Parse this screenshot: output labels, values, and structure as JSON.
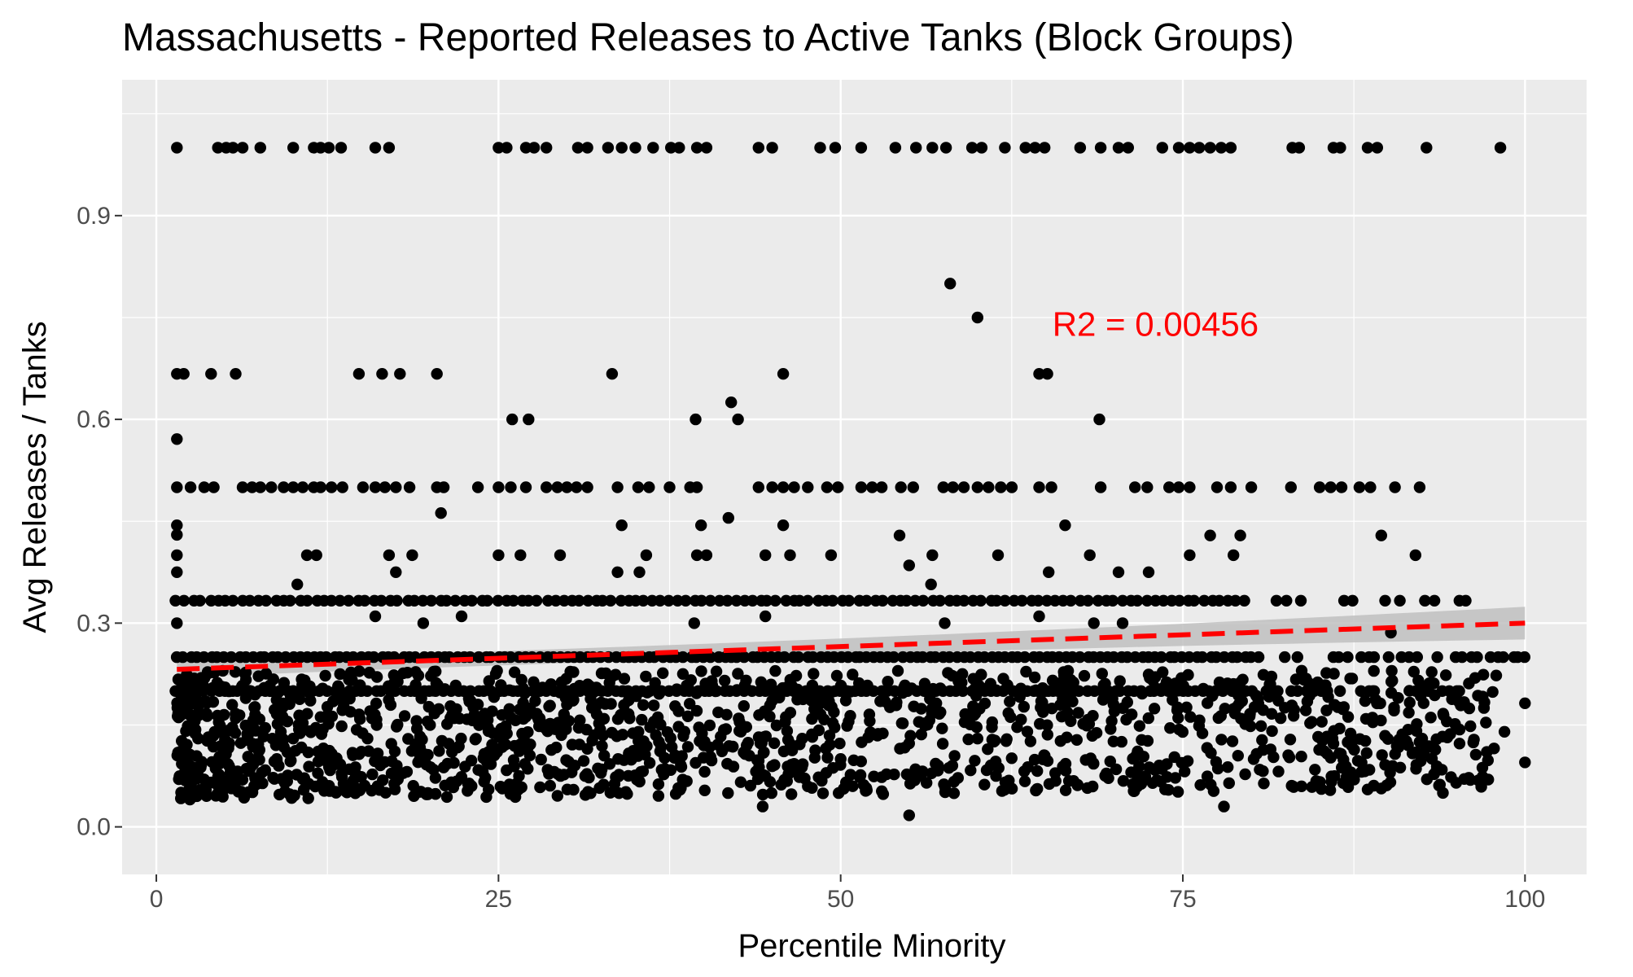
{
  "chart_data": {
    "type": "scatter",
    "title": "Massachusetts - Reported Releases to Active Tanks (Block Groups)",
    "xlabel": "Percentile Minority",
    "ylabel": "Avg Releases / Tanks",
    "xlim": [
      -2.5,
      104.5
    ],
    "ylim": [
      -0.07,
      1.1
    ],
    "x_ticks": [
      0,
      25,
      50,
      75,
      100
    ],
    "x_tick_labels": [
      "0",
      "25",
      "50",
      "75",
      "100"
    ],
    "y_ticks": [
      0.0,
      0.3,
      0.6,
      0.9
    ],
    "y_tick_labels": [
      "0.0",
      "0.3",
      "0.6",
      "0.9"
    ],
    "grid": true,
    "background_color": "#ebebeb",
    "point_color": "#000000",
    "trend_line": {
      "x": [
        1.5,
        100
      ],
      "y": [
        0.232,
        0.3
      ],
      "color": "#ff0000",
      "style": "dashed",
      "ribbon_color": "#bfbfbf",
      "ribbon_halfwidth": [
        0.012,
        0.006,
        0.024
      ]
    },
    "annotation": {
      "text": "R2 =  0.00456",
      "x": 73,
      "y": 0.74,
      "color": "#ff0000"
    },
    "points": [
      [
        1.5,
        1.0
      ],
      [
        4.5,
        1.0
      ],
      [
        5.1,
        1.0
      ],
      [
        5.6,
        1.0
      ],
      [
        6.3,
        1.0
      ],
      [
        7.6,
        1.0
      ],
      [
        10,
        1.0
      ],
      [
        11.5,
        1.0
      ],
      [
        12,
        1.0
      ],
      [
        12.6,
        1.0
      ],
      [
        13.5,
        1.0
      ],
      [
        16,
        1.0
      ],
      [
        17,
        1.0
      ],
      [
        25,
        1.0
      ],
      [
        25.6,
        1.0
      ],
      [
        27,
        1.0
      ],
      [
        27.6,
        1.0
      ],
      [
        28.5,
        1.0
      ],
      [
        30.8,
        1.0
      ],
      [
        31.5,
        1.0
      ],
      [
        33,
        1.0
      ],
      [
        34,
        1.0
      ],
      [
        35,
        1.0
      ],
      [
        36.3,
        1.0
      ],
      [
        37.6,
        1.0
      ],
      [
        38.2,
        1.0
      ],
      [
        39.5,
        1.0
      ],
      [
        40.2,
        1.0
      ],
      [
        44,
        1.0
      ],
      [
        45,
        1.0
      ],
      [
        48.5,
        1.0
      ],
      [
        49.6,
        1.0
      ],
      [
        51.5,
        1.0
      ],
      [
        54,
        1.0
      ],
      [
        55.5,
        1.0
      ],
      [
        56.7,
        1.0
      ],
      [
        57.7,
        1.0
      ],
      [
        59.6,
        1.0
      ],
      [
        60.3,
        1.0
      ],
      [
        62,
        1.0
      ],
      [
        63.5,
        1.0
      ],
      [
        64.2,
        1.0
      ],
      [
        64.9,
        1.0
      ],
      [
        67.5,
        1.0
      ],
      [
        69,
        1.0
      ],
      [
        70.3,
        1.0
      ],
      [
        71,
        1.0
      ],
      [
        73.5,
        1.0
      ],
      [
        74.7,
        1.0
      ],
      [
        75.5,
        1.0
      ],
      [
        76.2,
        1.0
      ],
      [
        77,
        1.0
      ],
      [
        77.8,
        1.0
      ],
      [
        78.5,
        1.0
      ],
      [
        83,
        1.0
      ],
      [
        83.5,
        1.0
      ],
      [
        86,
        1.0
      ],
      [
        86.5,
        1.0
      ],
      [
        88.5,
        1.0
      ],
      [
        89.2,
        1.0
      ],
      [
        92.8,
        1.0
      ],
      [
        98.2,
        1.0
      ],
      [
        58,
        0.8
      ],
      [
        60,
        0.75
      ],
      [
        1.5,
        0.667
      ],
      [
        2,
        0.667
      ],
      [
        4,
        0.667
      ],
      [
        5.8,
        0.667
      ],
      [
        14.8,
        0.667
      ],
      [
        16.5,
        0.667
      ],
      [
        17.8,
        0.667
      ],
      [
        20.5,
        0.667
      ],
      [
        33.3,
        0.667
      ],
      [
        45.8,
        0.667
      ],
      [
        64.5,
        0.667
      ],
      [
        65.1,
        0.667
      ],
      [
        42,
        0.625
      ],
      [
        26,
        0.6
      ],
      [
        27.2,
        0.6
      ],
      [
        39.4,
        0.6
      ],
      [
        42.5,
        0.6
      ],
      [
        68.9,
        0.6
      ],
      [
        1.5,
        0.571
      ],
      [
        1.5,
        0.5
      ],
      [
        2.5,
        0.5
      ],
      [
        3.5,
        0.5
      ],
      [
        4.2,
        0.5
      ],
      [
        6.3,
        0.5
      ],
      [
        7,
        0.5
      ],
      [
        7.6,
        0.5
      ],
      [
        8.4,
        0.5
      ],
      [
        9.3,
        0.5
      ],
      [
        10,
        0.5
      ],
      [
        10.7,
        0.5
      ],
      [
        11.5,
        0.5
      ],
      [
        12,
        0.5
      ],
      [
        12.8,
        0.5
      ],
      [
        13.6,
        0.5
      ],
      [
        15.1,
        0.5
      ],
      [
        16,
        0.5
      ],
      [
        16.7,
        0.5
      ],
      [
        17.5,
        0.5
      ],
      [
        18.5,
        0.5
      ],
      [
        20.5,
        0.5
      ],
      [
        21,
        0.5
      ],
      [
        23.5,
        0.5
      ],
      [
        25,
        0.5
      ],
      [
        25.9,
        0.5
      ],
      [
        27,
        0.5
      ],
      [
        28.5,
        0.5
      ],
      [
        29.3,
        0.5
      ],
      [
        30,
        0.5
      ],
      [
        30.7,
        0.5
      ],
      [
        31.5,
        0.5
      ],
      [
        33.7,
        0.5
      ],
      [
        35.2,
        0.5
      ],
      [
        36,
        0.5
      ],
      [
        37.5,
        0.5
      ],
      [
        39,
        0.5
      ],
      [
        39.5,
        0.5
      ],
      [
        44,
        0.5
      ],
      [
        45,
        0.5
      ],
      [
        45.8,
        0.5
      ],
      [
        46.6,
        0.5
      ],
      [
        47.6,
        0.5
      ],
      [
        49,
        0.5
      ],
      [
        49.8,
        0.5
      ],
      [
        51.5,
        0.5
      ],
      [
        52.3,
        0.5
      ],
      [
        53,
        0.5
      ],
      [
        54.4,
        0.5
      ],
      [
        55.3,
        0.5
      ],
      [
        57.5,
        0.5
      ],
      [
        58.2,
        0.5
      ],
      [
        59,
        0.5
      ],
      [
        60,
        0.5
      ],
      [
        60.8,
        0.5
      ],
      [
        61.7,
        0.5
      ],
      [
        62.5,
        0.5
      ],
      [
        64.5,
        0.5
      ],
      [
        65.4,
        0.5
      ],
      [
        69,
        0.5
      ],
      [
        71.5,
        0.5
      ],
      [
        72.4,
        0.5
      ],
      [
        74,
        0.5
      ],
      [
        74.7,
        0.5
      ],
      [
        75.5,
        0.5
      ],
      [
        77.5,
        0.5
      ],
      [
        78.5,
        0.5
      ],
      [
        80,
        0.5
      ],
      [
        82.9,
        0.5
      ],
      [
        85,
        0.5
      ],
      [
        85.8,
        0.5
      ],
      [
        86.6,
        0.5
      ],
      [
        87.9,
        0.5
      ],
      [
        88.7,
        0.5
      ],
      [
        90.5,
        0.5
      ],
      [
        92.3,
        0.5
      ],
      [
        20.8,
        0.462
      ],
      [
        41.8,
        0.455
      ],
      [
        1.5,
        0.444
      ],
      [
        34,
        0.444
      ],
      [
        39.8,
        0.444
      ],
      [
        45.8,
        0.444
      ],
      [
        66.4,
        0.444
      ],
      [
        1.5,
        0.43
      ],
      [
        54.3,
        0.429
      ],
      [
        77,
        0.429
      ],
      [
        79.2,
        0.429
      ],
      [
        89.5,
        0.429
      ],
      [
        1.5,
        0.4
      ],
      [
        11,
        0.4
      ],
      [
        11.7,
        0.4
      ],
      [
        17,
        0.4
      ],
      [
        18.7,
        0.4
      ],
      [
        25,
        0.4
      ],
      [
        26.6,
        0.4
      ],
      [
        29.5,
        0.4
      ],
      [
        35.8,
        0.4
      ],
      [
        39.5,
        0.4
      ],
      [
        40.2,
        0.4
      ],
      [
        44.5,
        0.4
      ],
      [
        46.3,
        0.4
      ],
      [
        49.3,
        0.4
      ],
      [
        56.7,
        0.4
      ],
      [
        61.5,
        0.4
      ],
      [
        68.2,
        0.4
      ],
      [
        75.5,
        0.4
      ],
      [
        78.7,
        0.4
      ],
      [
        92,
        0.4
      ],
      [
        55,
        0.385
      ],
      [
        1.5,
        0.375
      ],
      [
        17.5,
        0.375
      ],
      [
        33.7,
        0.375
      ],
      [
        35.3,
        0.375
      ],
      [
        65.2,
        0.375
      ],
      [
        70.3,
        0.375
      ],
      [
        72.5,
        0.375
      ],
      [
        10.3,
        0.357
      ],
      [
        56.6,
        0.357
      ],
      [
        16,
        0.31
      ],
      [
        19.5,
        0.3
      ],
      [
        22.3,
        0.31
      ],
      [
        68.5,
        0.3
      ],
      [
        64.5,
        0.31
      ],
      [
        70.6,
        0.3
      ],
      [
        1.5,
        0.3
      ],
      [
        39.3,
        0.3
      ],
      [
        57.6,
        0.3
      ],
      [
        44.5,
        0.31
      ],
      [
        90.2,
        0.286
      ],
      [
        20,
        0.15
      ],
      [
        40,
        0.12
      ],
      [
        60,
        0.13
      ],
      [
        30,
        0.18
      ],
      [
        50,
        0.1
      ],
      [
        70,
        0.17
      ],
      [
        10,
        0.2
      ],
      [
        55,
        0.017
      ],
      [
        78,
        0.03
      ],
      [
        44.3,
        0.03
      ],
      [
        94,
        0.05
      ],
      [
        88.5,
        0.055
      ],
      [
        100,
        0.095
      ],
      [
        98.5,
        0.14
      ],
      [
        100,
        0.182
      ],
      [
        97,
        0.175
      ],
      [
        95.2,
        0.2
      ],
      [
        96.5,
        0.25
      ],
      [
        99.2,
        0.25
      ]
    ],
    "dense_bands": [
      {
        "y": 0.333,
        "x_min": 1.5,
        "x_max": 97.5,
        "step": 0.6
      },
      {
        "y": 0.25,
        "x_min": 1.5,
        "x_max": 100,
        "step": 0.5
      },
      {
        "y": 0.2,
        "x_min": 1.5,
        "x_max": 95,
        "step": 0.5
      }
    ],
    "dense_cloud": {
      "x_min": 1.5,
      "x_max": 98,
      "y_min": 0.04,
      "y_max": 0.23,
      "count": 1500
    }
  }
}
